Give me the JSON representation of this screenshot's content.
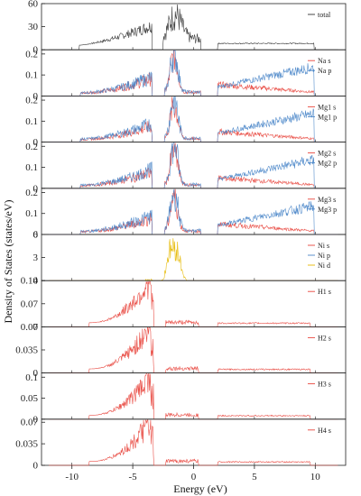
{
  "chart_data": {
    "type": "line",
    "xlabel": "Energy (eV)",
    "ylabel": "Density of States (states/eV)",
    "xlim": [
      -12.5,
      12.5
    ],
    "xticks": [
      "-10",
      "-5",
      "0",
      "5",
      "10"
    ],
    "xtick_values": [
      -10,
      -5,
      0,
      5,
      10
    ],
    "panels": [
      {
        "id": "total",
        "ylim": [
          0,
          60
        ],
        "yticks": [
          "60",
          "30",
          "0"
        ],
        "ytick_values": [
          60,
          30,
          0
        ],
        "legend": [
          "total"
        ],
        "colors": [
          "#333333"
        ],
        "amps": [
          1
        ],
        "scale": 30
      },
      {
        "id": "na",
        "ylim": [
          0,
          0.22
        ],
        "yticks": [
          "0.2",
          "0.1",
          "0"
        ],
        "ytick_values": [
          0.2,
          0.1,
          0
        ],
        "legend": [
          "Na s",
          "Na p"
        ],
        "colors": [
          "#e8453c",
          "#4a86c8"
        ],
        "amps": [
          1,
          1.2
        ],
        "scale": 0.06
      },
      {
        "id": "mg1",
        "ylim": [
          0,
          0.22
        ],
        "yticks": [
          "0.2",
          "0.1",
          "0"
        ],
        "ytick_values": [
          0.2,
          0.1,
          0
        ],
        "legend": [
          "Mg1 s",
          "Mg1 p"
        ],
        "colors": [
          "#e8453c",
          "#4a86c8"
        ],
        "amps": [
          1,
          1.3
        ],
        "scale": 0.055
      },
      {
        "id": "mg2",
        "ylim": [
          0,
          0.22
        ],
        "yticks": [
          "0.2",
          "0.1",
          "0"
        ],
        "ytick_values": [
          0.2,
          0.1,
          0
        ],
        "legend": [
          "Mg2 s",
          "Mg2 p"
        ],
        "colors": [
          "#e8453c",
          "#4a86c8"
        ],
        "amps": [
          1,
          1.3
        ],
        "scale": 0.055
      },
      {
        "id": "mg3",
        "ylim": [
          0,
          0.22
        ],
        "yticks": [
          "0.2",
          "0.1",
          "0"
        ],
        "ytick_values": [
          0.2,
          0.1,
          0
        ],
        "legend": [
          "Mg3 s",
          "Mg3 p"
        ],
        "colors": [
          "#e8453c",
          "#4a86c8"
        ],
        "amps": [
          1,
          1.3
        ],
        "scale": 0.055
      },
      {
        "id": "ni",
        "ylim": [
          0,
          6
        ],
        "yticks": [
          "6",
          "3",
          "0"
        ],
        "ytick_values": [
          6,
          3,
          0
        ],
        "legend": [
          "Ni s",
          "Ni p",
          "Ni d"
        ],
        "colors": [
          "#e8453c",
          "#4a86c8",
          "#e6b800"
        ],
        "amps": [
          0.04,
          0.05,
          1
        ],
        "scale": 1.5
      },
      {
        "id": "h1",
        "ylim": [
          0,
          0.14
        ],
        "yticks": [
          "0.14",
          "0.07",
          "0"
        ],
        "ytick_values": [
          0.14,
          0.07,
          0
        ],
        "legend": [
          "H1 s"
        ],
        "colors": [
          "#e8453c"
        ],
        "amps": [
          1
        ],
        "scale": 0.05
      },
      {
        "id": "h2",
        "ylim": [
          0,
          0.07
        ],
        "yticks": [
          "0.07",
          "0.035",
          "0"
        ],
        "ytick_values": [
          0.07,
          0.035,
          0
        ],
        "legend": [
          "H2 s"
        ],
        "colors": [
          "#e8453c"
        ],
        "amps": [
          1
        ],
        "scale": 0.025
      },
      {
        "id": "h3",
        "ylim": [
          0,
          0.11
        ],
        "yticks": [
          "0.1",
          "0.05",
          "0"
        ],
        "ytick_values": [
          0.1,
          0.05,
          0
        ],
        "legend": [
          "H3 s"
        ],
        "colors": [
          "#e8453c"
        ],
        "amps": [
          1
        ],
        "scale": 0.037
      },
      {
        "id": "h4",
        "ylim": [
          0,
          0.075
        ],
        "yticks": [
          "0.07",
          "0.035",
          "0"
        ],
        "ytick_values": [
          0.07,
          0.035,
          0
        ],
        "legend": [
          "H4 s"
        ],
        "colors": [
          "#e8453c"
        ],
        "amps": [
          1
        ],
        "scale": 0.025
      }
    ]
  }
}
